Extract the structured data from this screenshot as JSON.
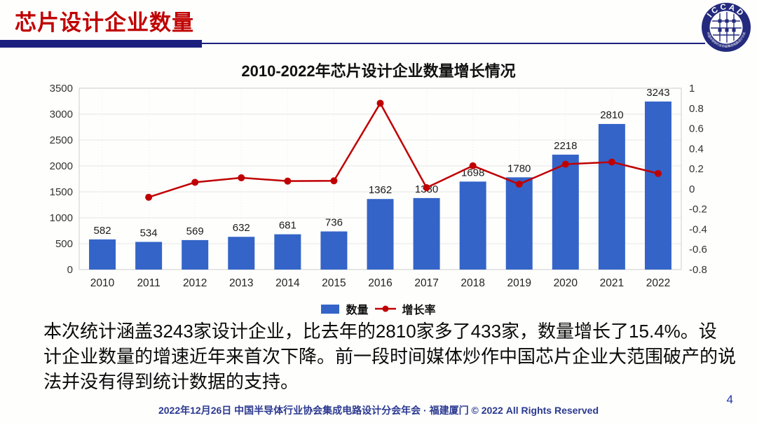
{
  "slide": {
    "title": "芯片设计企业数量",
    "page_number": "4",
    "footer": "2022年12月26日 中国半导体行业协会集成电路设计分会年会 · 福建厦门 © 2022 All Rights Reserved",
    "body_lines": [
      "本次统计涵盖3243家设计企业，比去年的2810家多了433家，数量增长了15.4%。设",
      "计企业数量的增速近年来首次下降。前一段时间媒体炒作中国芯片企业大范围破产的说",
      "法并没有得到统计数据的支持。"
    ],
    "logo": {
      "text": "ICCAD",
      "subtext": "中国半导体行业协会集成电路设计分会"
    }
  },
  "colors": {
    "accent_red": "#C00000",
    "navy": "#1B1F7E",
    "bar_blue": "#3464C8",
    "line_red": "#C00000",
    "footer_blue": "#2B3990",
    "grid": "#E6E6E6"
  },
  "chart_data": {
    "type": "bar",
    "title": "2010-2022年芯片设计企业数量增长情况",
    "categories": [
      "2010",
      "2011",
      "2012",
      "2013",
      "2014",
      "2015",
      "2016",
      "2017",
      "2018",
      "2019",
      "2020",
      "2021",
      "2022"
    ],
    "series": [
      {
        "name": "数量",
        "type": "bar",
        "axis": "left",
        "color": "#3464C8",
        "values": [
          582,
          534,
          569,
          632,
          681,
          736,
          1362,
          1380,
          1698,
          1780,
          2218,
          2810,
          3243
        ]
      },
      {
        "name": "增长率",
        "type": "line",
        "axis": "right",
        "color": "#C00000",
        "values": [
          null,
          -0.082,
          0.066,
          0.111,
          0.078,
          0.081,
          0.851,
          0.013,
          0.23,
          0.048,
          0.246,
          0.267,
          0.154
        ]
      }
    ],
    "left_axis": {
      "min": 0,
      "max": 3500,
      "ticks": [
        0,
        500,
        1000,
        1500,
        2000,
        2500,
        3000,
        3500
      ]
    },
    "right_axis": {
      "min": -0.8,
      "max": 1,
      "ticks": [
        "1",
        "0.8",
        "0.6",
        "0.4",
        "0.2",
        "0",
        "-0.2",
        "-0.4",
        "-0.6",
        "-0.8"
      ]
    },
    "legend_position": "bottom",
    "grid": true
  }
}
